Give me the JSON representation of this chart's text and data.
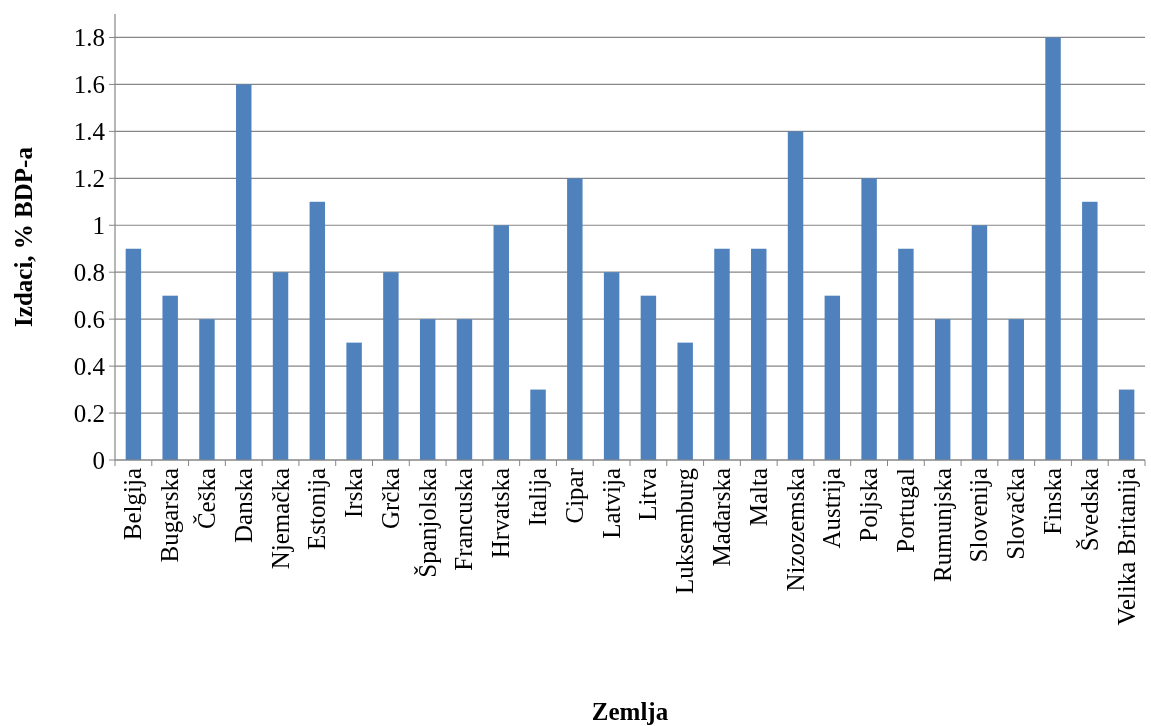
{
  "chart_data": {
    "type": "bar",
    "xlabel": "Zemlja",
    "ylabel": "Izdaci, % BDP-a",
    "categories": [
      "Belgija",
      "Bugarska",
      "Češka",
      "Danska",
      "Njemačka",
      "Estonija",
      "Irska",
      "Grčka",
      "Španjolska",
      "Francuska",
      "Hrvatska",
      "Italija",
      "Cipar",
      "Latvija",
      "Litva",
      "Luksemburg",
      "Mađarska",
      "Malta",
      "Nizozemska",
      "Austrija",
      "Poljska",
      "Portugal",
      "Rumunjska",
      "Slovenija",
      "Slovačka",
      "Finska",
      "Švedska",
      "Velika Britanija"
    ],
    "values": [
      0.9,
      0.7,
      0.6,
      1.6,
      0.8,
      1.1,
      0.5,
      0.8,
      0.6,
      0.6,
      1.0,
      0.3,
      1.2,
      0.8,
      0.7,
      0.5,
      0.9,
      0.9,
      1.4,
      0.7,
      1.2,
      0.9,
      0.6,
      1.0,
      0.6,
      1.8,
      1.1,
      0.3
    ],
    "color": "#4f81bd",
    "ylim": [
      0,
      1.9
    ],
    "yticks": [
      0,
      0.2,
      0.4,
      0.6,
      0.8,
      1,
      1.2,
      1.4,
      1.6,
      1.8
    ],
    "grid": "y"
  }
}
